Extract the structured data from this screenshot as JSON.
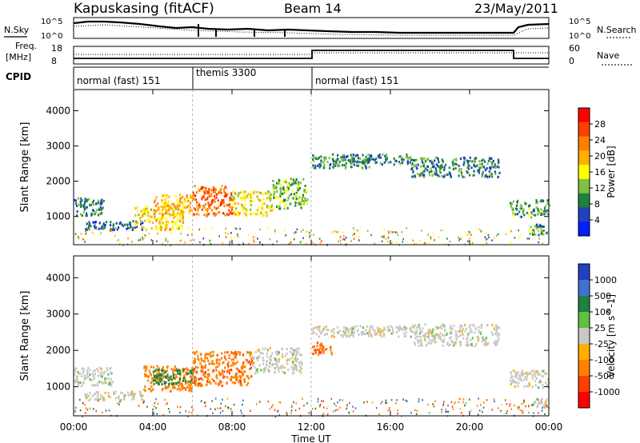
{
  "header": {
    "station": "Kapuskasing (fitACF)",
    "beam": "Beam 14",
    "date": "23/May/2011"
  },
  "noise_panel": {
    "left_label": "N.Sky",
    "right_label": "N.Search",
    "left_ticks": [
      "10^5",
      "10^0"
    ],
    "right_ticks": [
      "10^5",
      "10^0"
    ]
  },
  "freq_panel": {
    "left_label": "Freq.",
    "left_unit": "[MHz]",
    "left_ticks": [
      "18",
      "8"
    ],
    "right_label": "Nave",
    "right_ticks": [
      "60",
      "0"
    ]
  },
  "cpid": {
    "label": "CPID",
    "segments": [
      {
        "name": "normal (fast) 151",
        "start": 0,
        "end": 6
      },
      {
        "name": "themis 3300",
        "start": 6,
        "end": 12
      },
      {
        "name": "normal (fast) 151",
        "start": 12,
        "end": 24
      }
    ]
  },
  "x_axis": {
    "label": "Time UT",
    "ticks": [
      "00:00",
      "04:00",
      "08:00",
      "12:00",
      "16:00",
      "20:00",
      "00:00"
    ]
  },
  "power_colorbar": {
    "label": "Power [dB]",
    "ticks": [
      "28",
      "24",
      "20",
      "16",
      "12",
      "8",
      "4"
    ],
    "colors": [
      "#ff0000",
      "#ff4000",
      "#ff8000",
      "#ffb000",
      "#ffff00",
      "#80c040",
      "#208040",
      "#2040c0",
      "#0020ff"
    ]
  },
  "velocity_colorbar": {
    "label": "Velocity [m s^-1]",
    "ticks": [
      "1000",
      "500",
      "100",
      "25",
      "-25",
      "-100",
      "-500",
      "-1000"
    ],
    "colors": [
      "#2040c0",
      "#4070d0",
      "#208040",
      "#60c040",
      "#c8c8c8",
      "#ffb000",
      "#ff8000",
      "#ff4000",
      "#ff0000"
    ]
  },
  "chart_data": [
    {
      "type": "heatmap",
      "name": "power",
      "ylabel": "Slant Range [km]",
      "xlabel": "",
      "ylim": [
        200,
        4600
      ],
      "xlim": [
        0,
        24
      ],
      "yticks": [
        1000,
        2000,
        3000,
        4000
      ],
      "regions": [
        {
          "x": [
            0.0,
            1.5
          ],
          "y": [
            1050,
            1550
          ],
          "value": 8
        },
        {
          "x": [
            0.5,
            3.5
          ],
          "y": [
            650,
            900
          ],
          "value": 6
        },
        {
          "x": [
            3.0,
            5.5
          ],
          "y": [
            650,
            1300
          ],
          "value": 18
        },
        {
          "x": [
            4.0,
            6.0
          ],
          "y": [
            1050,
            1650
          ],
          "value": 20
        },
        {
          "x": [
            6.0,
            8.0
          ],
          "y": [
            1050,
            1900
          ],
          "value": 26
        },
        {
          "x": [
            8.0,
            10.0
          ],
          "y": [
            1050,
            1750
          ],
          "value": 16
        },
        {
          "x": [
            10.0,
            11.8
          ],
          "y": [
            1250,
            2100
          ],
          "value": 12
        },
        {
          "x": [
            12.0,
            15.0
          ],
          "y": [
            2400,
            2800
          ],
          "value": 8
        },
        {
          "x": [
            14.0,
            17.0
          ],
          "y": [
            2500,
            2800
          ],
          "value": 7
        },
        {
          "x": [
            17.0,
            21.5
          ],
          "y": [
            2150,
            2700
          ],
          "value": 8
        },
        {
          "x": [
            22.0,
            24.0
          ],
          "y": [
            1000,
            1500
          ],
          "value": 10
        },
        {
          "x": [
            23.0,
            24.0
          ],
          "y": [
            500,
            800
          ],
          "value": 9
        }
      ]
    },
    {
      "type": "heatmap",
      "name": "velocity",
      "ylabel": "Slant Range [km]",
      "xlabel": "Time UT",
      "ylim": [
        200,
        4600
      ],
      "xlim": [
        0,
        24
      ],
      "yticks": [
        1000,
        2000,
        3000,
        4000
      ],
      "regions": [
        {
          "x": [
            0.0,
            2.0
          ],
          "y": [
            1050,
            1550
          ],
          "value": 0
        },
        {
          "x": [
            0.5,
            3.5
          ],
          "y": [
            650,
            900
          ],
          "value": 0
        },
        {
          "x": [
            3.5,
            6.0
          ],
          "y": [
            900,
            1600
          ],
          "value": -300
        },
        {
          "x": [
            4.0,
            6.0
          ],
          "y": [
            1100,
            1500
          ],
          "value": 150
        },
        {
          "x": [
            6.0,
            9.0
          ],
          "y": [
            1050,
            2000
          ],
          "value": -400
        },
        {
          "x": [
            9.0,
            11.5
          ],
          "y": [
            1400,
            2100
          ],
          "value": 0
        },
        {
          "x": [
            12.0,
            13.0
          ],
          "y": [
            1900,
            2250
          ],
          "value": -500
        },
        {
          "x": [
            12.0,
            17.0
          ],
          "y": [
            2400,
            2700
          ],
          "value": 0
        },
        {
          "x": [
            17.0,
            21.5
          ],
          "y": [
            2150,
            2750
          ],
          "value": 0
        },
        {
          "x": [
            22.0,
            24.0
          ],
          "y": [
            1000,
            1500
          ],
          "value": 0
        },
        {
          "x": [
            23.0,
            24.0
          ],
          "y": [
            450,
            700
          ],
          "value": 0
        }
      ]
    }
  ]
}
